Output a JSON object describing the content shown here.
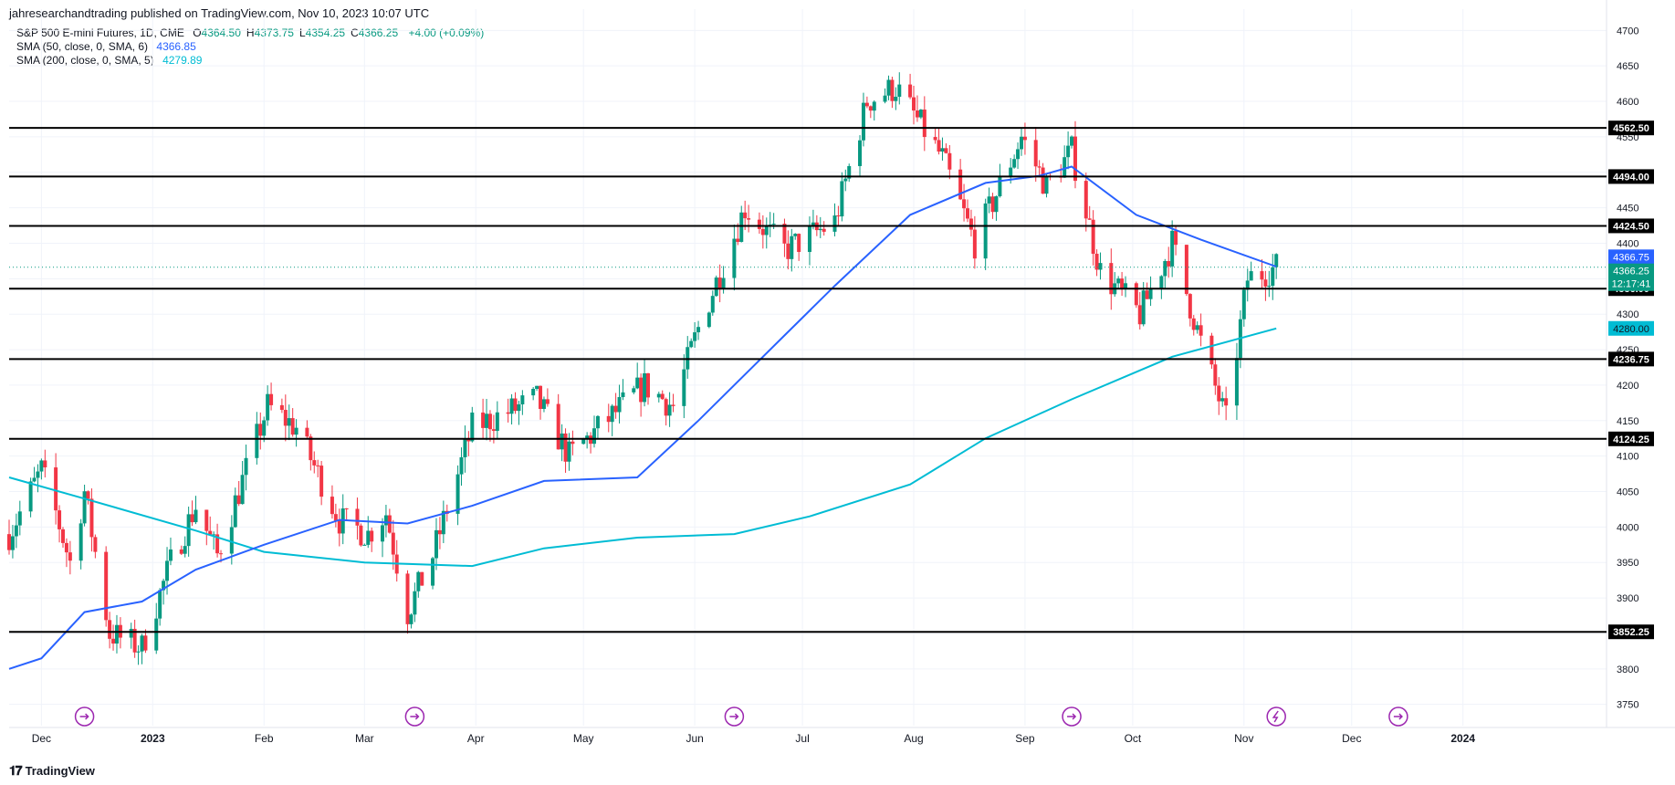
{
  "header": "jahresearchandtrading published on TradingView.com, Nov 10, 2023 10:07 UTC",
  "footer": {
    "logo_icon": "tradingview-logo-icon",
    "brand": "TradingView"
  },
  "legend": {
    "symbol": "S&P 500 E-mini Futures, 1D, CME",
    "ohlc": [
      {
        "k": "O",
        "v": "4364.50"
      },
      {
        "k": "H",
        "v": "4373.75"
      },
      {
        "k": "L",
        "v": "4354.25"
      },
      {
        "k": "C",
        "v": "4366.25"
      }
    ],
    "change": "+4.00 (+0.09%)",
    "sma50": {
      "label": "SMA (50, close, 0, SMA, 6)",
      "value": "4366.85",
      "color": "#2962ff"
    },
    "sma200": {
      "label": "SMA (200, close, 0, SMA, 5)",
      "value": "4279.89",
      "color": "#00bcd4"
    }
  },
  "colors": {
    "up": "#089981",
    "down": "#f23645",
    "grid": "#f0f3fa",
    "axis_text": "#131722",
    "event": "#9c27b0"
  },
  "chart_data": {
    "type": "candlestick",
    "y_range": [
      3720,
      4730
    ],
    "y_ticks": [
      3750,
      3800,
      3850,
      3900,
      3950,
      4000,
      4050,
      4100,
      4150,
      4200,
      4250,
      4300,
      4350,
      4400,
      4450,
      4500,
      4550,
      4600,
      4650,
      4700
    ],
    "x_ticks": [
      {
        "label": "Dec",
        "date": "2022-12-01"
      },
      {
        "label": "2023",
        "date": "2023-01-01"
      },
      {
        "label": "Feb",
        "date": "2023-02-01"
      },
      {
        "label": "Mar",
        "date": "2023-03-01"
      },
      {
        "label": "Apr",
        "date": "2023-04-01"
      },
      {
        "label": "May",
        "date": "2023-05-01"
      },
      {
        "label": "Jun",
        "date": "2023-06-01"
      },
      {
        "label": "Jul",
        "date": "2023-07-01"
      },
      {
        "label": "Aug",
        "date": "2023-08-01"
      },
      {
        "label": "Sep",
        "date": "2023-09-01"
      },
      {
        "label": "Oct",
        "date": "2023-10-01"
      },
      {
        "label": "Nov",
        "date": "2023-11-01"
      },
      {
        "label": "Dec",
        "date": "2023-12-01"
      },
      {
        "label": "2024",
        "date": "2024-01-01"
      }
    ],
    "x_range": [
      "2022-11-22",
      "2024-02-10"
    ],
    "last_bar_date": "2023-11-10",
    "horizontal_levels": [
      "4562.50",
      "4494.00",
      "4424.50",
      "4336.00",
      "4236.75",
      "4124.25",
      "3852.25"
    ],
    "current_price": {
      "value": "4366.25",
      "countdown": "12:17:41"
    },
    "sma50_last": {
      "value": "4366.75"
    },
    "sma200_last": {
      "value": "4280.00"
    },
    "event_dates": [
      "2022-12-13",
      "2023-03-15",
      "2023-06-12",
      "2023-09-14",
      "2023-11-10",
      "2023-12-14"
    ],
    "price_path": [
      [
        "2022-11-22",
        3990
      ],
      [
        "2022-12-01",
        4080
      ],
      [
        "2022-12-05",
        4020
      ],
      [
        "2022-12-09",
        3950
      ],
      [
        "2022-12-13",
        4050
      ],
      [
        "2022-12-20",
        3850
      ],
      [
        "2022-12-29",
        3830
      ],
      [
        "2023-01-06",
        3950
      ],
      [
        "2023-01-13",
        4030
      ],
      [
        "2023-01-19",
        3960
      ],
      [
        "2023-02-02",
        4170
      ],
      [
        "2023-02-10",
        4140
      ],
      [
        "2023-02-22",
        4010
      ],
      [
        "2023-03-02",
        3990
      ],
      [
        "2023-03-07",
        4020
      ],
      [
        "2023-03-13",
        3880
      ],
      [
        "2023-03-20",
        3960
      ],
      [
        "2023-03-31",
        4140
      ],
      [
        "2023-04-18",
        4180
      ],
      [
        "2023-04-27",
        4100
      ],
      [
        "2023-05-18",
        4200
      ],
      [
        "2023-05-26",
        4170
      ],
      [
        "2023-06-02",
        4280
      ],
      [
        "2023-06-15",
        4450
      ],
      [
        "2023-06-26",
        4390
      ],
      [
        "2023-07-10",
        4430
      ],
      [
        "2023-07-19",
        4600
      ],
      [
        "2023-07-27",
        4620
      ],
      [
        "2023-08-09",
        4520
      ],
      [
        "2023-08-18",
        4400
      ],
      [
        "2023-08-31",
        4550
      ],
      [
        "2023-09-07",
        4480
      ],
      [
        "2023-09-14",
        4530
      ],
      [
        "2023-09-22",
        4360
      ],
      [
        "2023-10-03",
        4300
      ],
      [
        "2023-10-12",
        4400
      ],
      [
        "2023-10-20",
        4260
      ],
      [
        "2023-10-27",
        4150
      ],
      [
        "2023-11-02",
        4350
      ],
      [
        "2023-11-10",
        4366
      ]
    ],
    "sma50_path": [
      [
        "2022-11-22",
        3800
      ],
      [
        "2022-12-01",
        3815
      ],
      [
        "2022-12-13",
        3880
      ],
      [
        "2022-12-29",
        3895
      ],
      [
        "2023-01-13",
        3940
      ],
      [
        "2023-02-01",
        3975
      ],
      [
        "2023-02-22",
        4010
      ],
      [
        "2023-03-13",
        4005
      ],
      [
        "2023-03-31",
        4030
      ],
      [
        "2023-04-20",
        4065
      ],
      [
        "2023-05-16",
        4070
      ],
      [
        "2023-06-02",
        4150
      ],
      [
        "2023-06-26",
        4270
      ],
      [
        "2023-07-10",
        4340
      ],
      [
        "2023-07-31",
        4440
      ],
      [
        "2023-08-21",
        4485
      ],
      [
        "2023-09-05",
        4495
      ],
      [
        "2023-09-14",
        4508
      ],
      [
        "2023-10-02",
        4440
      ],
      [
        "2023-10-20",
        4405
      ],
      [
        "2023-11-10",
        4367
      ]
    ],
    "sma200_path": [
      [
        "2022-11-22",
        4070
      ],
      [
        "2022-12-13",
        4040
      ],
      [
        "2023-01-13",
        3995
      ],
      [
        "2023-02-01",
        3965
      ],
      [
        "2023-03-01",
        3950
      ],
      [
        "2023-03-31",
        3945
      ],
      [
        "2023-04-20",
        3970
      ],
      [
        "2023-05-16",
        3985
      ],
      [
        "2023-06-12",
        3990
      ],
      [
        "2023-07-03",
        4015
      ],
      [
        "2023-07-31",
        4060
      ],
      [
        "2023-08-21",
        4125
      ],
      [
        "2023-09-14",
        4180
      ],
      [
        "2023-10-12",
        4240
      ],
      [
        "2023-11-10",
        4280
      ]
    ]
  }
}
